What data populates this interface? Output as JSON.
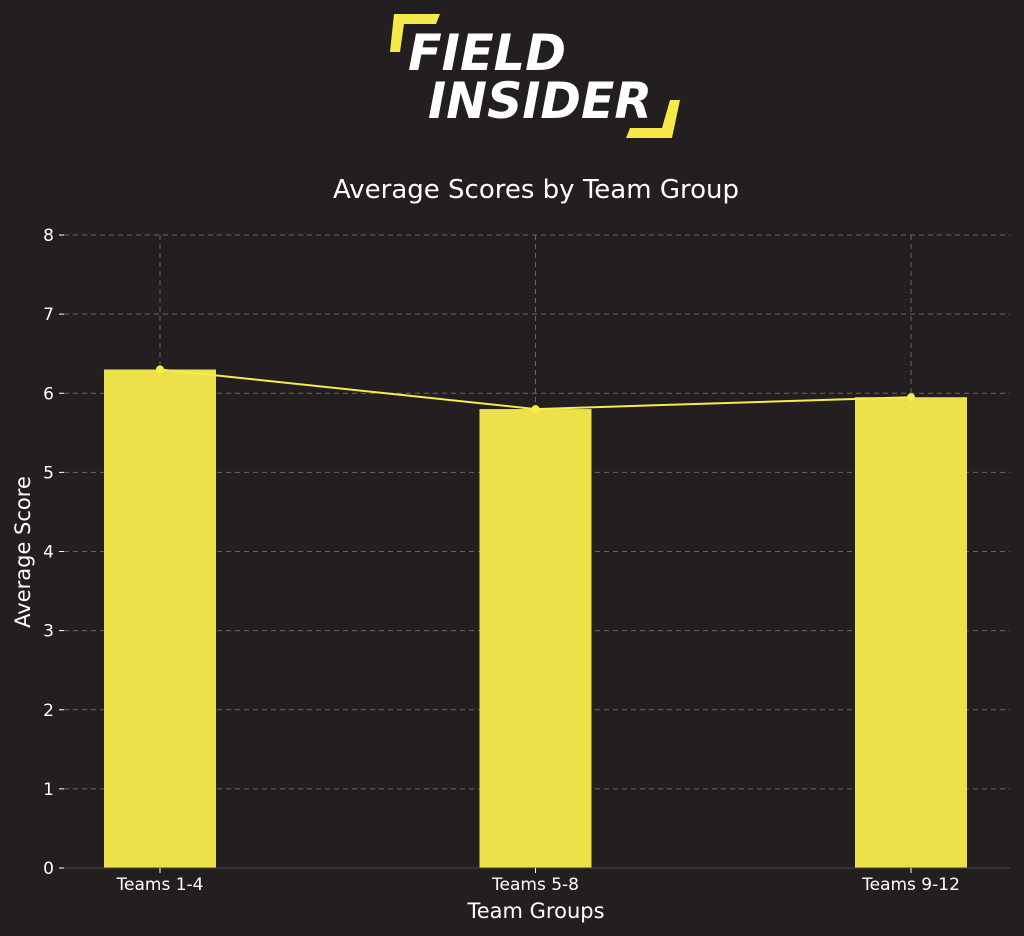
{
  "brand": {
    "line1": "FIELD",
    "line2": "INSIDER",
    "accent_color": "#f8e94a",
    "text_color": "#ffffff"
  },
  "chart_data": {
    "type": "bar",
    "title": "Average Scores by Team Group",
    "xlabel": "Team Groups",
    "ylabel": "Average Score",
    "categories": [
      "Teams 1-4",
      "Teams 5-8",
      "Teams 9-12"
    ],
    "values": [
      6.3,
      5.8,
      5.95
    ],
    "overlay_line": true,
    "ylim": [
      0,
      8
    ],
    "yticks": [
      0,
      1,
      2,
      3,
      4,
      5,
      6,
      7,
      8
    ],
    "grid": true,
    "bar_color": "#f8ec4b",
    "line_color": "#f8ec4b",
    "background": "#231f20",
    "grid_color": "#666666"
  }
}
